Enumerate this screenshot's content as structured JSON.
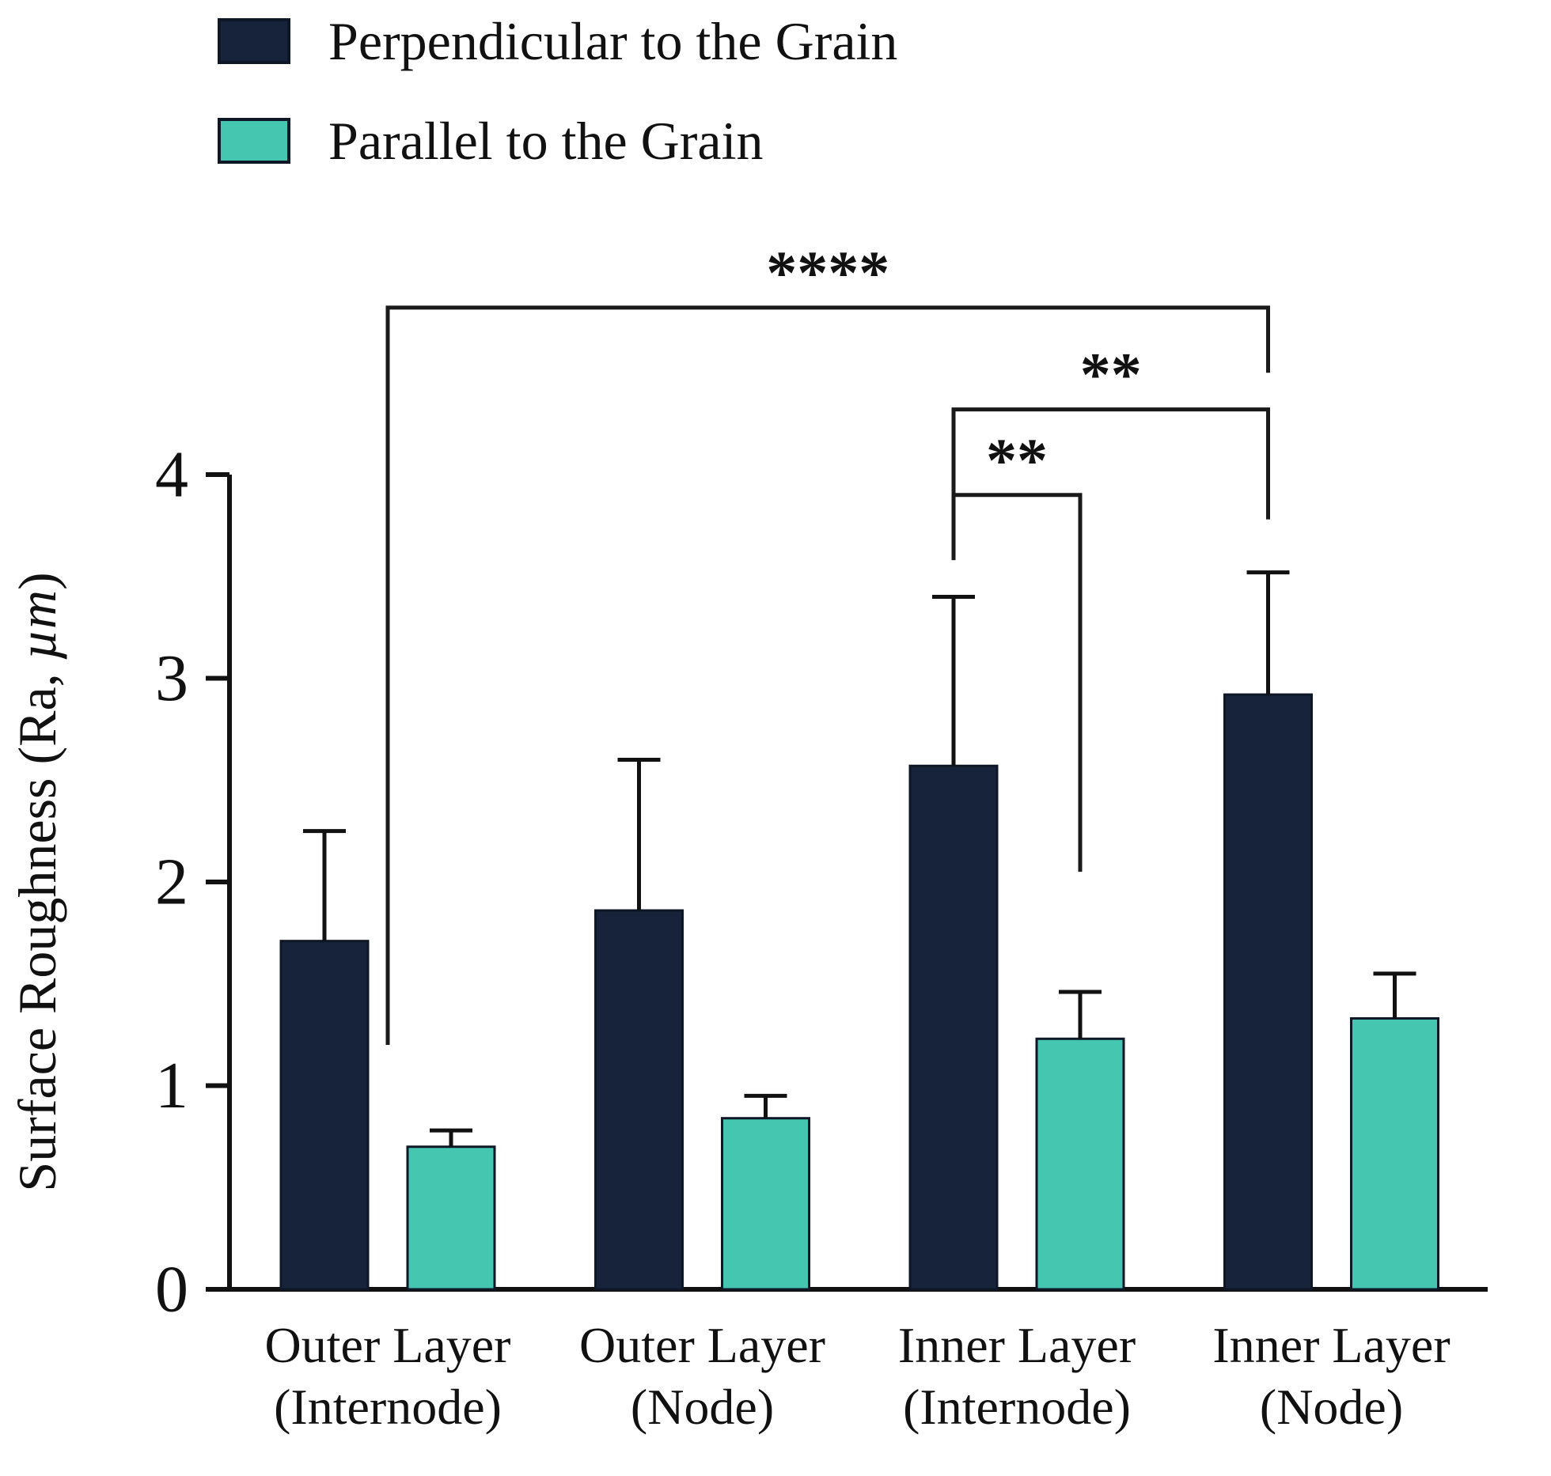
{
  "figure": {
    "kind": "grouped-bar-chart-with-error-bars"
  },
  "legend": {
    "items": [
      {
        "label": "Perpendicular to the Grain",
        "color": "#16233a"
      },
      {
        "label": "Parallel to the Grain",
        "color": "#45c6b1"
      }
    ]
  },
  "chart_data": {
    "type": "bar",
    "title": "",
    "xlabel": "",
    "ylabel": "Surface Roughness (Ra, µm)",
    "ylabel_parts": {
      "prefix": "Surface Roughness (Ra, ",
      "italic": "µm",
      "suffix": ")"
    },
    "ylim": [
      0,
      4
    ],
    "yticks": [
      0,
      1,
      2,
      3,
      4
    ],
    "grid": false,
    "legend_position": "top-left",
    "categories": [
      [
        "Outer Layer",
        "(Internode)"
      ],
      [
        "Outer Layer",
        "(Node)"
      ],
      [
        "Inner Layer",
        "(Internode)"
      ],
      [
        "Inner Layer",
        "(Node)"
      ]
    ],
    "series": [
      {
        "name": "Perpendicular to the Grain",
        "color": "#16233a",
        "values": [
          1.71,
          1.86,
          2.57,
          2.92
        ],
        "errors": [
          0.54,
          0.74,
          0.83,
          0.6
        ]
      },
      {
        "name": "Parallel to the Grain",
        "color": "#45c6b1",
        "values": [
          0.7,
          0.84,
          1.23,
          1.33
        ],
        "errors": [
          0.08,
          0.11,
          0.23,
          0.22
        ]
      }
    ],
    "significance": [
      {
        "label": "****",
        "x1": {
          "group": 0,
          "pos": "between"
        },
        "x2": {
          "group": 3,
          "series": 0
        },
        "top": 4.82,
        "drop1": 1.2,
        "drop2": 4.5
      },
      {
        "label": "**",
        "x1": {
          "group": 2,
          "series": 0
        },
        "x2": {
          "group": 3,
          "series": 0
        },
        "top": 4.32,
        "drop1": 3.9,
        "drop2": 3.78
      },
      {
        "label": "**",
        "x1": {
          "group": 2,
          "series": 0
        },
        "x2": {
          "group": 2,
          "series": 1
        },
        "top": 3.9,
        "drop1": 3.58,
        "drop2": 2.05
      }
    ]
  }
}
